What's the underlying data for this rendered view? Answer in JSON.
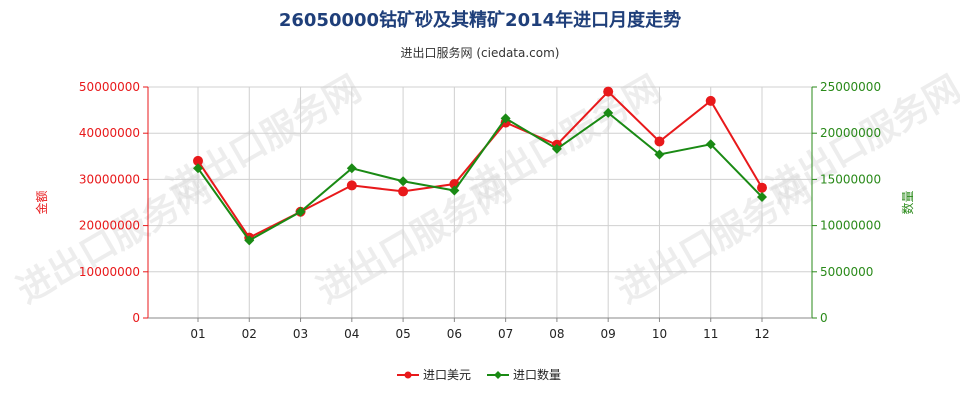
{
  "chart_data": {
    "type": "line",
    "title": "26050000钴矿砂及其精矿2014年进口月度走势",
    "subtitle": "进出口服务网 (ciedata.com)",
    "categories": [
      "01",
      "02",
      "03",
      "04",
      "05",
      "06",
      "07",
      "08",
      "09",
      "10",
      "11",
      "12"
    ],
    "y_left": {
      "label": "金额",
      "ylim": [
        0,
        50000000
      ],
      "ticks": [
        "0",
        "10000000",
        "20000000",
        "30000000",
        "40000000",
        "50000000"
      ],
      "color": "#e8191b"
    },
    "y_right": {
      "label": "数量",
      "ylim": [
        0,
        25000000
      ],
      "ticks": [
        "0",
        "5000000",
        "10000000",
        "15000000",
        "20000000",
        "25000000"
      ],
      "color": "#2a8a1a"
    },
    "series": [
      {
        "name": "进口美元",
        "axis": "left",
        "color": "#e8191b",
        "marker": "circle",
        "values": [
          34000000,
          17400000,
          23000000,
          28700000,
          27400000,
          29000000,
          42300000,
          37500000,
          49000000,
          38200000,
          47000000,
          28200000
        ]
      },
      {
        "name": "进口数量",
        "axis": "right",
        "color": "#1a8a14",
        "marker": "diamond",
        "values": [
          16200000,
          8400000,
          11500000,
          16200000,
          14800000,
          13800000,
          21600000,
          18300000,
          22200000,
          17700000,
          18800000,
          13100000
        ]
      }
    ],
    "grid": true,
    "legend": "bottom-center"
  },
  "watermark": "进出口服务网"
}
